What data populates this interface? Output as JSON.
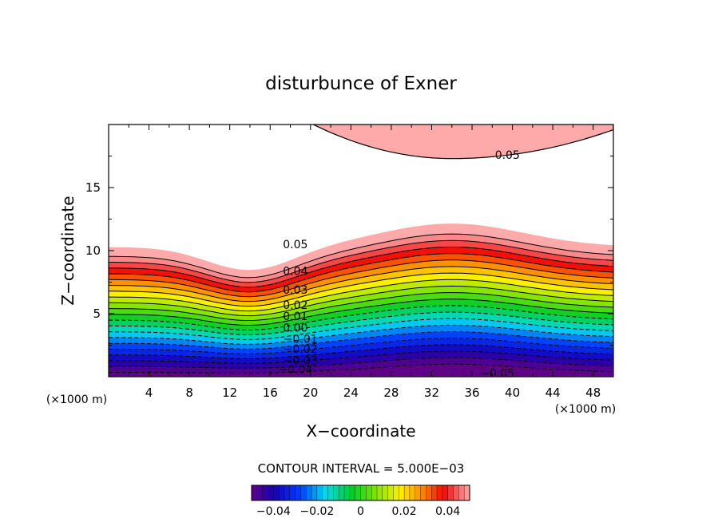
{
  "chart_data": {
    "type": "contour",
    "title": "disturbunce of Exner",
    "xlabel": "X−coordinate",
    "ylabel": "Z−coordinate",
    "x_unit_left": "(×1000 m)",
    "x_unit_right": "(×1000 m)",
    "xlim": [
      0,
      50
    ],
    "ylim": [
      0,
      20
    ],
    "xticks": [
      4,
      8,
      12,
      16,
      20,
      24,
      28,
      32,
      36,
      40,
      44,
      48
    ],
    "yticks": [
      5,
      10,
      15
    ],
    "contour_interval_text": "CONTOUR INTERVAL = 5.000E−03",
    "colorbar": {
      "range": [
        -0.05,
        0.05
      ],
      "ticks": [
        -0.04,
        -0.02,
        0,
        0.02,
        0.04
      ],
      "tick_labels": [
        "−0.04",
        "−0.02",
        "0",
        "0.02",
        "0.04"
      ]
    },
    "contour_labels": [
      {
        "text": "0.05",
        "x": 18.5,
        "y": 10.5
      },
      {
        "text": "0.04",
        "x": 18.5,
        "y": 8.4
      },
      {
        "text": "0.03",
        "x": 18.5,
        "y": 6.9
      },
      {
        "text": "0.02",
        "x": 18.5,
        "y": 5.7
      },
      {
        "text": "0.01",
        "x": 18.5,
        "y": 4.8
      },
      {
        "text": "0.00",
        "x": 18.5,
        "y": 3.9
      },
      {
        "text": "−0.01",
        "x": 19,
        "y": 3.0
      },
      {
        "text": "−0.02",
        "x": 19,
        "y": 2.2
      },
      {
        "text": "−0.03",
        "x": 19,
        "y": 1.3
      },
      {
        "text": "−0.04",
        "x": 18.5,
        "y": 0.6
      },
      {
        "text": "0.05",
        "x": 39.5,
        "y": 17.6
      },
      {
        "text": "−0.05",
        "x": 38.5,
        "y": 0.3
      }
    ]
  }
}
